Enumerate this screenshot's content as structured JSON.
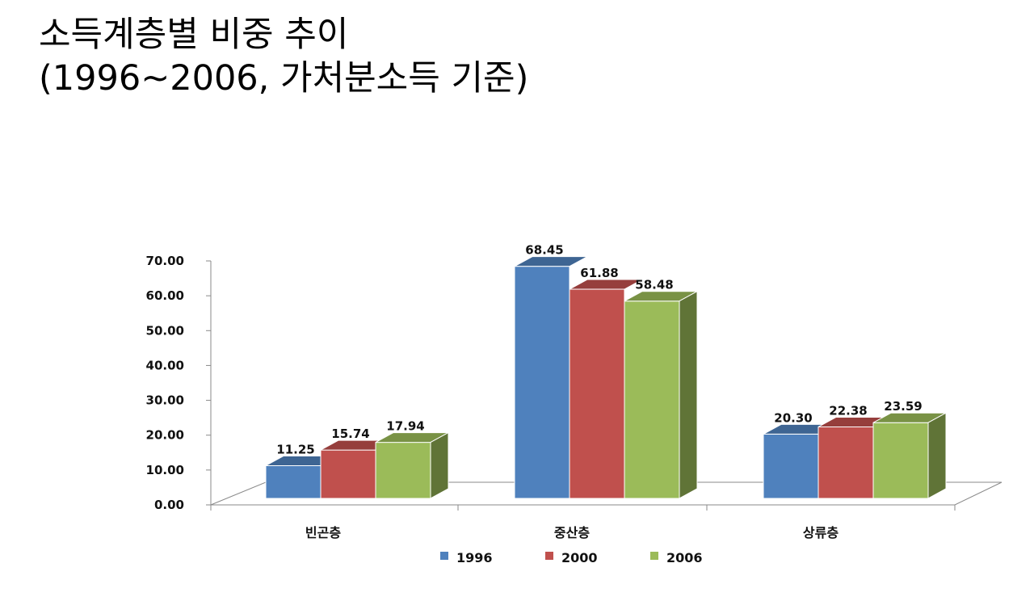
{
  "title": {
    "line1": "소득계층별 비중 추이",
    "line2": "(1996~2006, 가처분소득 기준)"
  },
  "chart_data": {
    "type": "bar",
    "categories": [
      "빈곤층",
      "중산층",
      "상류층"
    ],
    "series": [
      {
        "name": "1996",
        "values": [
          11.25,
          68.45,
          20.3
        ],
        "color": "#4f81bd",
        "label_text": [
          "11.25",
          "68.45",
          "20.30"
        ]
      },
      {
        "name": "2000",
        "values": [
          15.74,
          61.88,
          22.38
        ],
        "color": "#c0504d",
        "label_text": [
          "15.74",
          "61.88",
          "22.38"
        ]
      },
      {
        "name": "2006",
        "values": [
          17.94,
          58.48,
          23.59
        ],
        "color": "#9bbb59",
        "label_text": [
          "17.94",
          "58.48",
          "23.59"
        ]
      }
    ],
    "yticks": [
      "0.00",
      "10.00",
      "20.00",
      "30.00",
      "40.00",
      "50.00",
      "60.00",
      "70.00"
    ],
    "ylim": [
      0,
      70
    ],
    "grid": false,
    "legend": "bottom",
    "style": "3d-clustered-column"
  }
}
